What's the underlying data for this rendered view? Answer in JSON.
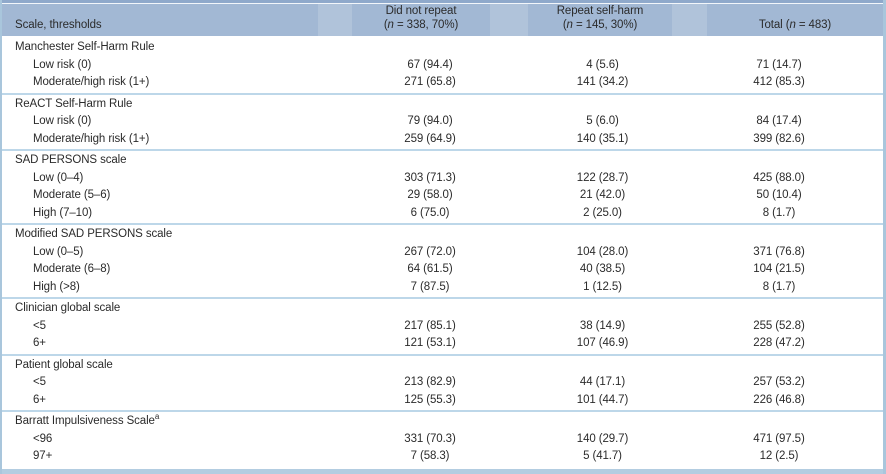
{
  "colors": {
    "header_cell": "#a2b8d4",
    "header_gap": "#b0c3da",
    "top_strip": "#8fa9cb",
    "rule": "#bdd7e9",
    "side_border": "#a9c6dc",
    "bottom_bar": "#b3cde1",
    "text": "#2b2b2b"
  },
  "table": {
    "col1_header": "Scale, thresholds",
    "columns": [
      {
        "title": "Did not repeat",
        "sub_open": "(",
        "n": "n",
        "sub_rest": " = 338, 70%)"
      },
      {
        "title": "Repeat self-harm",
        "sub_open": "(",
        "n": "n",
        "sub_rest": " = 145, 30%)"
      },
      {
        "title": "Total ",
        "sub_open": "(",
        "n": "n",
        "sub_rest": " = 483)"
      }
    ],
    "sections": [
      {
        "name": "Manchester Self-Harm Rule",
        "sup": "",
        "rows": [
          {
            "label": "Low risk (0)",
            "dnr": "67 (94.4)",
            "rsh": "4 (5.6)",
            "total": "71 (14.7)"
          },
          {
            "label": "Moderate/high risk (1+)",
            "dnr": "271 (65.8)",
            "rsh": "141 (34.2)",
            "total": "412 (85.3)"
          }
        ]
      },
      {
        "name": "ReACT Self-Harm Rule",
        "sup": "",
        "rows": [
          {
            "label": "Low risk (0)",
            "dnr": "79 (94.0)",
            "rsh": "5 (6.0)",
            "total": "84 (17.4)"
          },
          {
            "label": "Moderate/high risk (1+)",
            "dnr": "259 (64.9)",
            "rsh": "140 (35.1)",
            "total": "399 (82.6)"
          }
        ]
      },
      {
        "name": "SAD PERSONS scale",
        "sup": "",
        "rows": [
          {
            "label": "Low (0–4)",
            "dnr": "303 (71.3)",
            "rsh": "122 (28.7)",
            "total": "425 (88.0)"
          },
          {
            "label": "Moderate (5–6)",
            "dnr": "29 (58.0)",
            "rsh": "21 (42.0)",
            "total": "50 (10.4)"
          },
          {
            "label": "High (7–10)",
            "dnr": "6 (75.0)",
            "rsh": "2 (25.0)",
            "total": "8 (1.7)"
          }
        ]
      },
      {
        "name": "Modified SAD PERSONS scale",
        "sup": "",
        "rows": [
          {
            "label": "Low (0–5)",
            "dnr": "267 (72.0)",
            "rsh": "104 (28.0)",
            "total": "371 (76.8)"
          },
          {
            "label": "Moderate (6–8)",
            "dnr": "64 (61.5)",
            "rsh": "40 (38.5)",
            "total": "104 (21.5)"
          },
          {
            "label": "High (>8)",
            "dnr": "7 (87.5)",
            "rsh": "1 (12.5)",
            "total": "8 (1.7)"
          }
        ]
      },
      {
        "name": "Clinician global scale",
        "sup": "",
        "rows": [
          {
            "label": "<5",
            "dnr": "217 (85.1)",
            "rsh": "38 (14.9)",
            "total": "255 (52.8)"
          },
          {
            "label": "6+",
            "dnr": "121 (53.1)",
            "rsh": "107 (46.9)",
            "total": "228 (47.2)"
          }
        ]
      },
      {
        "name": "Patient global scale",
        "sup": "",
        "rows": [
          {
            "label": "<5",
            "dnr": "213 (82.9)",
            "rsh": "44 (17.1)",
            "total": "257 (53.2)"
          },
          {
            "label": "6+",
            "dnr": "125 (55.3)",
            "rsh": "101 (44.7)",
            "total": "226 (46.8)"
          }
        ]
      },
      {
        "name": "Barratt Impulsiveness Scale",
        "sup": "a",
        "rows": [
          {
            "label": "<96",
            "dnr": "331 (70.3)",
            "rsh": "140 (29.7)",
            "total": "471 (97.5)"
          },
          {
            "label": "97+",
            "dnr": "7 (58.3)",
            "rsh": "5 (41.7)",
            "total": "12 (2.5)"
          }
        ]
      }
    ]
  }
}
